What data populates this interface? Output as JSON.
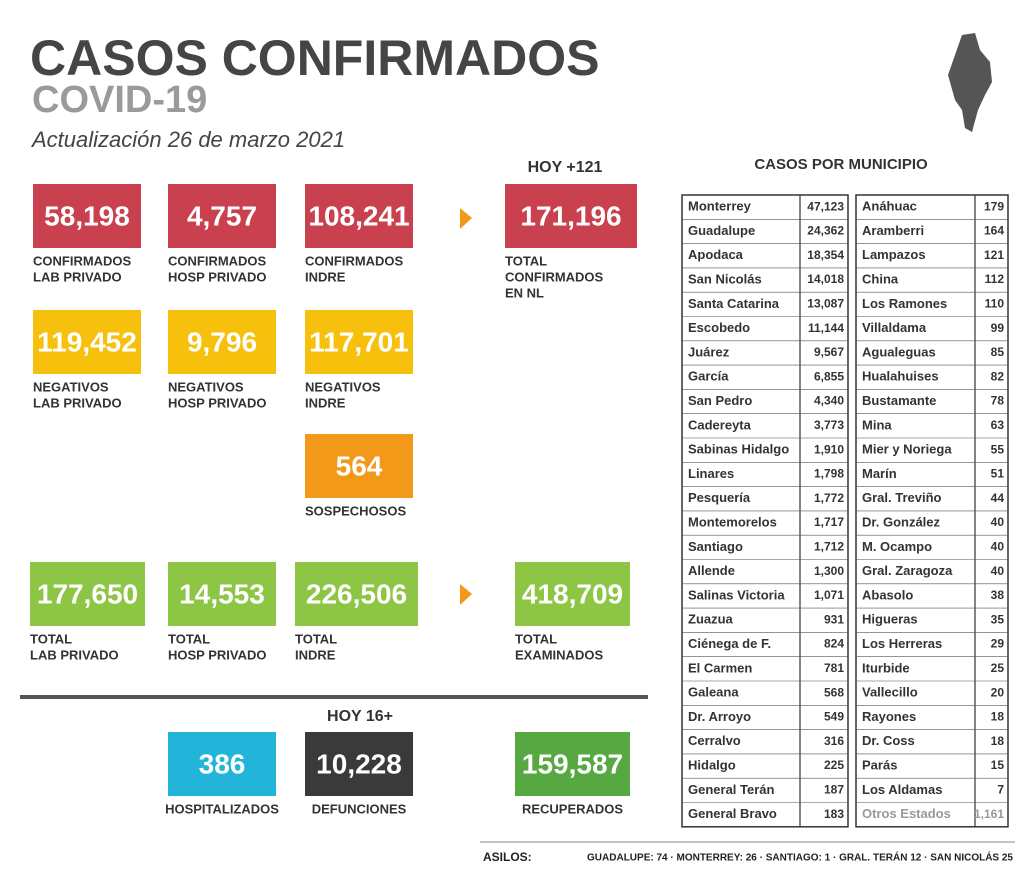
{
  "header": {
    "title": "CASOS CONFIRMADOS",
    "subtitle": "COVID-19",
    "date": "Actualización 26 de marzo 2021"
  },
  "headings": [
    "HOY +121",
    "HOY 16+"
  ],
  "boxes": [
    {
      "value": "58,198",
      "label": [
        "CONFIRMADOS",
        "LAB PRIVADO"
      ],
      "color": "#c9414f"
    },
    {
      "value": "4,757",
      "label": [
        "CONFIRMADOS",
        "HOSP PRIVADO"
      ],
      "color": "#c9414f"
    },
    {
      "value": "108,241",
      "label": [
        "CONFIRMADOS",
        "INDRE"
      ],
      "color": "#c9414f"
    },
    {
      "value": "171,196",
      "label": [
        "TOTAL",
        "CONFIRMADOS",
        "EN NL"
      ],
      "color": "#c9414f"
    },
    {
      "value": "119,452",
      "label": [
        "NEGATIVOS",
        "LAB PRIVADO"
      ],
      "color": "#f6c00d"
    },
    {
      "value": "9,796",
      "label": [
        "NEGATIVOS",
        "HOSP PRIVADO"
      ],
      "color": "#f6c00d"
    },
    {
      "value": "117,701",
      "label": [
        "NEGATIVOS",
        "INDRE"
      ],
      "color": "#f6c00d"
    },
    {
      "value": "564",
      "label": [
        "SOSPECHOSOS"
      ],
      "color": "#f3991a"
    },
    {
      "value": "177,650",
      "label": [
        "TOTAL",
        "LAB PRIVADO"
      ],
      "color": "#8dc545"
    },
    {
      "value": "14,553",
      "label": [
        "TOTAL",
        "HOSP PRIVADO"
      ],
      "color": "#8dc545"
    },
    {
      "value": "226,506",
      "label": [
        "TOTAL",
        "INDRE"
      ],
      "color": "#8dc545"
    },
    {
      "value": "418,709",
      "label": [
        "TOTAL",
        "EXAMINADOS"
      ],
      "color": "#8dc545"
    },
    {
      "value": "386",
      "label": [
        "HOSPITALIZADOS"
      ],
      "color": "#22b5d9"
    },
    {
      "value": "10,228",
      "label": [
        "DEFUNCIONES"
      ],
      "color": "#3a3a3a"
    },
    {
      "value": "159,587",
      "label": [
        "RECUPERADOS"
      ],
      "color": "#58a842"
    }
  ],
  "municipios": {
    "title": "CASOS POR MUNICIPIO",
    "left": [
      [
        "Monterrey",
        "47,123"
      ],
      [
        "Guadalupe",
        "24,362"
      ],
      [
        "Apodaca",
        "18,354"
      ],
      [
        "San Nicolás",
        "14,018"
      ],
      [
        "Santa Catarina",
        "13,087"
      ],
      [
        "Escobedo",
        "11,144"
      ],
      [
        "Juárez",
        "9,567"
      ],
      [
        "García",
        "6,855"
      ],
      [
        "San Pedro",
        "4,340"
      ],
      [
        "Cadereyta",
        "3,773"
      ],
      [
        "Sabinas Hidalgo",
        "1,910"
      ],
      [
        "Linares",
        "1,798"
      ],
      [
        "Pesquería",
        "1,772"
      ],
      [
        "Montemorelos",
        "1,717"
      ],
      [
        "Santiago",
        "1,712"
      ],
      [
        "Allende",
        "1,300"
      ],
      [
        "Salinas Victoria",
        "1,071"
      ],
      [
        "Zuazua",
        "931"
      ],
      [
        "Ciénega de F.",
        "824"
      ],
      [
        "El Carmen",
        "781"
      ],
      [
        "Galeana",
        "568"
      ],
      [
        "Dr. Arroyo",
        "549"
      ],
      [
        "Cerralvo",
        "316"
      ],
      [
        "Hidalgo",
        "225"
      ],
      [
        "General Terán",
        "187"
      ],
      [
        "General Bravo",
        "183"
      ]
    ],
    "right": [
      [
        "Anáhuac",
        "179"
      ],
      [
        "Aramberri",
        "164"
      ],
      [
        "Lampazos",
        "121"
      ],
      [
        "China",
        "112"
      ],
      [
        "Los Ramones",
        "110"
      ],
      [
        "Villaldama",
        "99"
      ],
      [
        "Agualeguas",
        "85"
      ],
      [
        "Hualahuises",
        "82"
      ],
      [
        "Bustamante",
        "78"
      ],
      [
        "Mina",
        "63"
      ],
      [
        "Mier y Noriega",
        "55"
      ],
      [
        "Marín",
        "51"
      ],
      [
        "Gral. Treviño",
        "44"
      ],
      [
        "Dr. González",
        "40"
      ],
      [
        "M. Ocampo",
        "40"
      ],
      [
        "Gral. Zaragoza",
        "40"
      ],
      [
        "Abasolo",
        "38"
      ],
      [
        "Higueras",
        "35"
      ],
      [
        "Los Herreras",
        "29"
      ],
      [
        "Iturbide",
        "25"
      ],
      [
        "Vallecillo",
        "20"
      ],
      [
        "Rayones",
        "18"
      ],
      [
        "Dr. Coss",
        "18"
      ],
      [
        "Parás",
        "15"
      ],
      [
        "Los Aldamas",
        "7"
      ],
      [
        "Otros Estados",
        "1,161"
      ]
    ]
  },
  "footer": {
    "label": "ASILOS:",
    "text": "GUADALUPE: 74 · MONTERREY: 26 · SANTIAGO: 1 · GRAL. TERÁN 12 · SAN NICOLÁS 25"
  }
}
